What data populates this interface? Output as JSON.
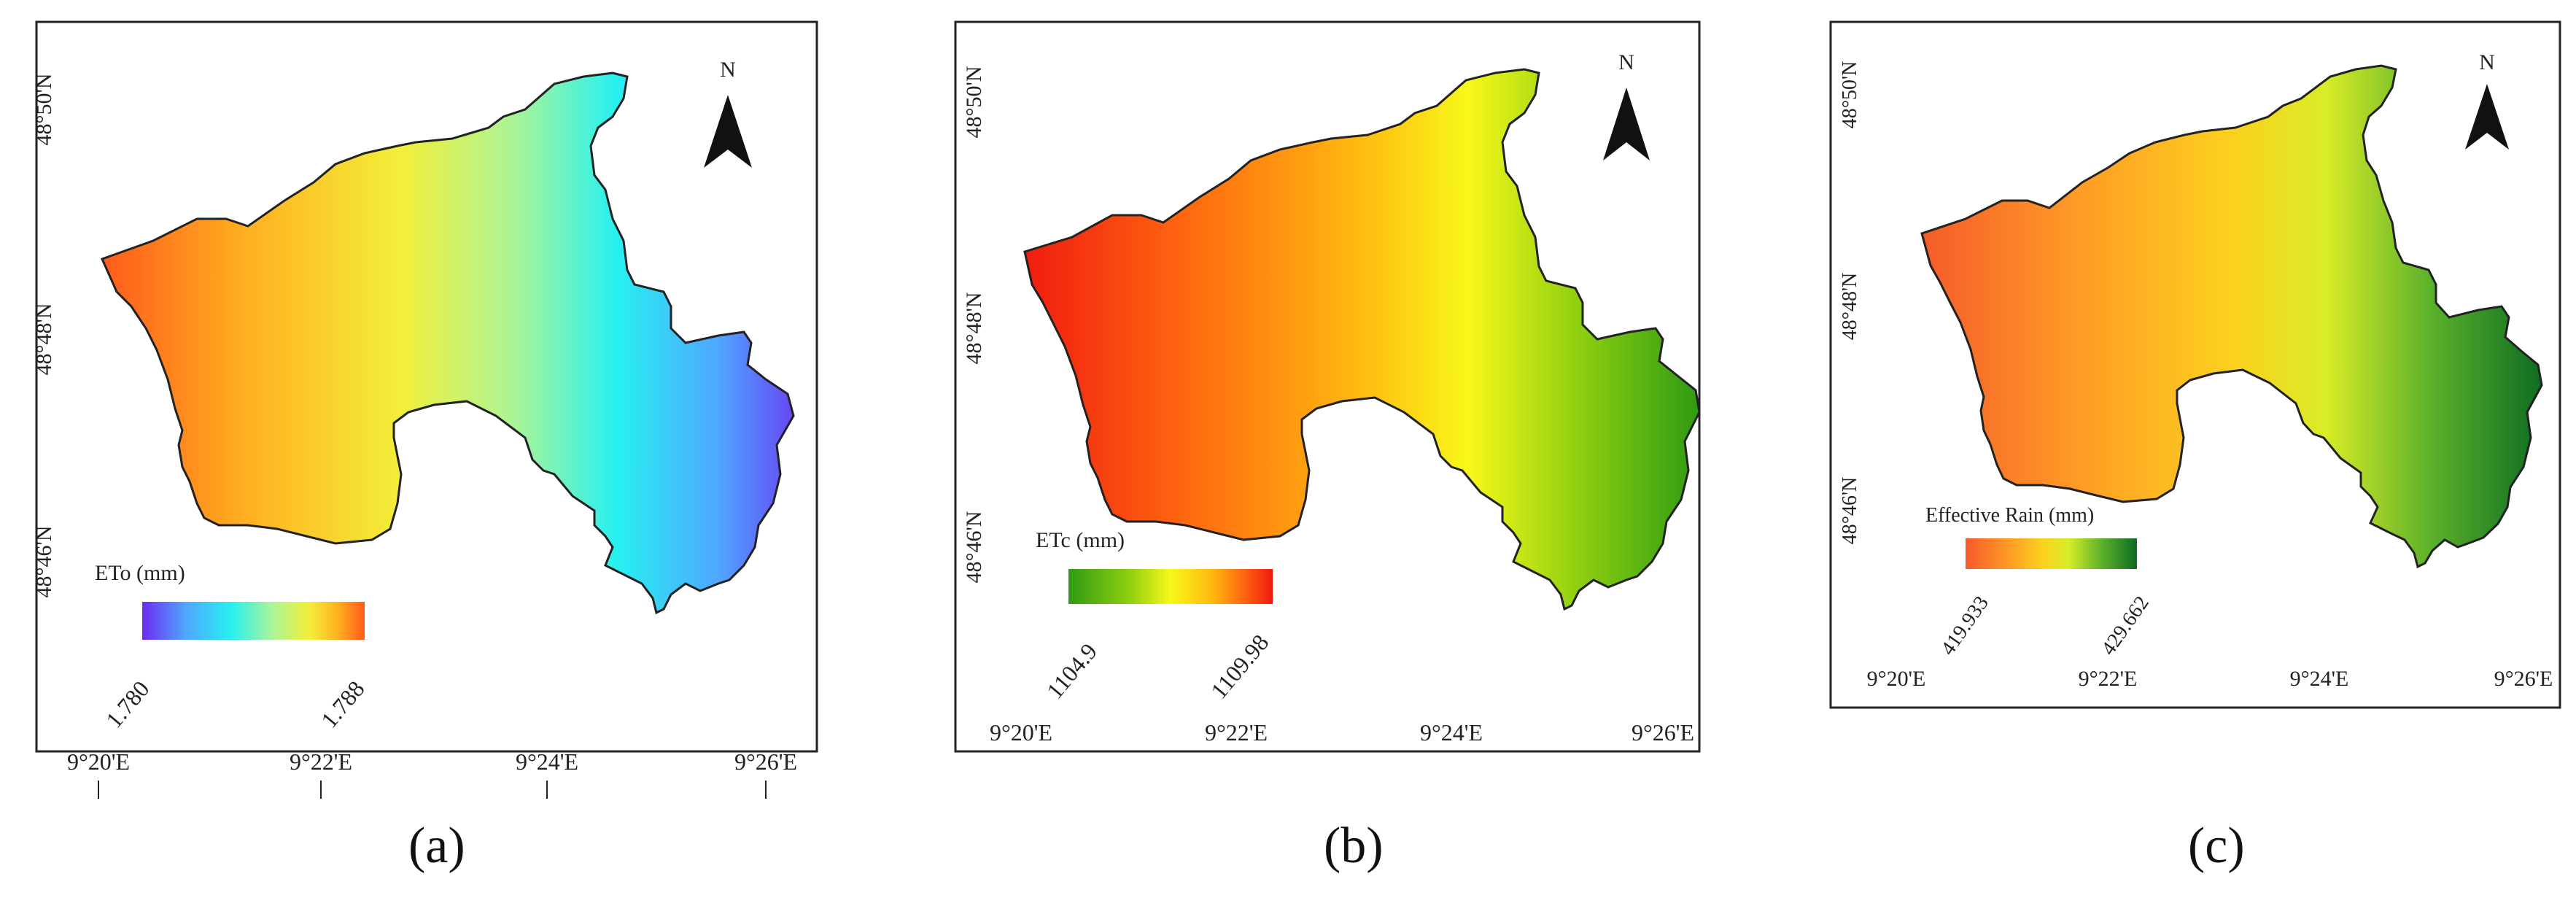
{
  "north_label": "N",
  "panels": [
    {
      "caption": "(a)",
      "lon_ticks": [
        "9°20'E",
        "9°22'E",
        "9°24'E",
        "9°26'E"
      ],
      "lat_ticks": [
        "48°50'N",
        "48°48'N",
        "48°46'N"
      ],
      "legend": {
        "title": "ETo (mm)",
        "min_label": "1.780",
        "max_label": "1.788"
      },
      "color_ramp": [
        "#6c2bf2",
        "#4fa8ff",
        "#27f0f0",
        "#a8f59a",
        "#f3ef3a",
        "#ffb020",
        "#ff5a1a"
      ]
    },
    {
      "caption": "(b)",
      "lon_ticks": [
        "9°20'E",
        "9°22'E",
        "9°24'E",
        "9°26'E"
      ],
      "lat_ticks": [
        "48°50'N",
        "48°48'N",
        "48°46'N"
      ],
      "legend": {
        "title": "ETc (mm)",
        "min_label": "1104.9",
        "max_label": "1109.98"
      },
      "color_ramp": [
        "#2f9a13",
        "#8fd010",
        "#f8f81a",
        "#ffba10",
        "#ff6a10",
        "#f01a10"
      ]
    },
    {
      "caption": "(c)",
      "lon_ticks": [
        "9°20'E",
        "9°22'E",
        "9°24'E",
        "9°26'E"
      ],
      "lat_ticks": [
        "48°50'N",
        "48°48'N",
        "48°46'N"
      ],
      "legend": {
        "title": "Effective Rain (mm)",
        "min_label": "419.933",
        "max_label": "429.662"
      },
      "color_ramp": [
        "#0c6b22",
        "#5ab02a",
        "#d9ec28",
        "#fbd11e",
        "#ff9a26",
        "#f45a2a"
      ]
    }
  ]
}
